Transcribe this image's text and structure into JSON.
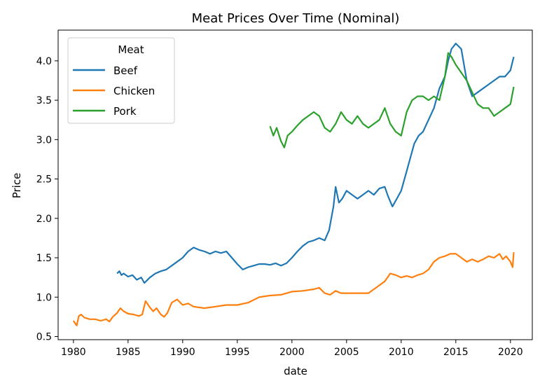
{
  "chart_data": {
    "type": "line",
    "title": "Meat Prices Over Time (Nominal)",
    "xlabel": "date",
    "ylabel": "Price",
    "xlim": [
      1978.6,
      2022.0
    ],
    "ylim": [
      0.46,
      4.39
    ],
    "x_ticks": [
      1980,
      1985,
      1990,
      1995,
      2000,
      2005,
      2010,
      2015,
      2020
    ],
    "y_ticks": [
      0.5,
      1.0,
      1.5,
      2.0,
      2.5,
      3.0,
      3.5,
      4.0
    ],
    "x_tick_labels": [
      "1980",
      "1985",
      "1990",
      "1995",
      "2000",
      "2005",
      "2010",
      "2015",
      "2020"
    ],
    "y_tick_labels": [
      "0.5",
      "1.0",
      "1.5",
      "2.0",
      "2.5",
      "3.0",
      "3.5",
      "4.0"
    ],
    "grid": false,
    "legend": {
      "title": "Meat",
      "placement": "upper-left"
    },
    "series": [
      {
        "name": "Beef",
        "color": "#1f77b4",
        "x": [
          1984.0,
          1984.2,
          1984.4,
          1984.6,
          1985.0,
          1985.4,
          1985.8,
          1986.2,
          1986.5,
          1987.0,
          1987.5,
          1988.0,
          1988.5,
          1989.0,
          1989.5,
          1990.0,
          1990.5,
          1991.0,
          1991.5,
          1992.0,
          1992.5,
          1993.0,
          1993.5,
          1994.0,
          1994.5,
          1995.0,
          1995.5,
          1996.0,
          1996.5,
          1997.0,
          1997.5,
          1998.0,
          1998.5,
          1999.0,
          1999.5,
          2000.0,
          2000.5,
          2001.0,
          2001.5,
          2002.0,
          2002.5,
          2003.0,
          2003.4,
          2003.8,
          2004.0,
          2004.3,
          2004.6,
          2005.0,
          2005.5,
          2006.0,
          2006.5,
          2007.0,
          2007.5,
          2008.0,
          2008.5,
          2008.8,
          2009.2,
          2009.6,
          2010.0,
          2010.4,
          2010.8,
          2011.2,
          2011.6,
          2012.0,
          2012.5,
          2013.0,
          2013.5,
          2014.0,
          2014.3,
          2014.6,
          2015.0,
          2015.5,
          2016.0,
          2016.5,
          2017.0,
          2017.5,
          2018.0,
          2018.5,
          2019.0,
          2019.5,
          2020.0,
          2020.3
        ],
        "values": [
          1.3,
          1.33,
          1.28,
          1.3,
          1.26,
          1.28,
          1.22,
          1.25,
          1.18,
          1.25,
          1.3,
          1.33,
          1.35,
          1.4,
          1.45,
          1.5,
          1.58,
          1.63,
          1.6,
          1.58,
          1.55,
          1.58,
          1.56,
          1.58,
          1.5,
          1.42,
          1.35,
          1.38,
          1.4,
          1.42,
          1.42,
          1.41,
          1.43,
          1.4,
          1.43,
          1.5,
          1.58,
          1.65,
          1.7,
          1.72,
          1.75,
          1.72,
          1.85,
          2.15,
          2.4,
          2.2,
          2.25,
          2.35,
          2.3,
          2.25,
          2.3,
          2.35,
          2.3,
          2.38,
          2.4,
          2.28,
          2.15,
          2.25,
          2.35,
          2.55,
          2.75,
          2.95,
          3.05,
          3.1,
          3.25,
          3.4,
          3.65,
          3.8,
          4.0,
          4.15,
          4.22,
          4.15,
          3.75,
          3.55,
          3.6,
          3.65,
          3.7,
          3.75,
          3.8,
          3.8,
          3.88,
          4.05
        ]
      },
      {
        "name": "Chicken",
        "color": "#ff7f0e",
        "x": [
          1980.0,
          1980.3,
          1980.5,
          1980.7,
          1981.0,
          1981.5,
          1982.0,
          1982.5,
          1983.0,
          1983.3,
          1983.6,
          1984.0,
          1984.3,
          1984.6,
          1985.0,
          1985.5,
          1986.0,
          1986.3,
          1986.6,
          1987.0,
          1987.3,
          1987.6,
          1988.0,
          1988.3,
          1988.6,
          1989.0,
          1989.5,
          1990.0,
          1990.5,
          1991.0,
          1992.0,
          1993.0,
          1994.0,
          1995.0,
          1996.0,
          1997.0,
          1998.0,
          1999.0,
          2000.0,
          2001.0,
          2002.0,
          2002.5,
          2003.0,
          2003.5,
          2004.0,
          2004.5,
          2005.0,
          2006.0,
          2007.0,
          2007.5,
          2008.0,
          2008.5,
          2009.0,
          2009.5,
          2010.0,
          2010.5,
          2011.0,
          2011.5,
          2012.0,
          2012.5,
          2013.0,
          2013.5,
          2014.0,
          2014.5,
          2015.0,
          2015.5,
          2016.0,
          2016.5,
          2017.0,
          2017.5,
          2018.0,
          2018.5,
          2019.0,
          2019.3,
          2019.6,
          2020.0,
          2020.2,
          2020.3
        ],
        "values": [
          0.7,
          0.64,
          0.76,
          0.78,
          0.74,
          0.72,
          0.72,
          0.7,
          0.72,
          0.69,
          0.75,
          0.8,
          0.86,
          0.82,
          0.79,
          0.78,
          0.76,
          0.78,
          0.95,
          0.87,
          0.82,
          0.86,
          0.78,
          0.75,
          0.8,
          0.93,
          0.97,
          0.9,
          0.92,
          0.88,
          0.86,
          0.88,
          0.9,
          0.9,
          0.93,
          1.0,
          1.02,
          1.03,
          1.07,
          1.08,
          1.1,
          1.12,
          1.05,
          1.03,
          1.08,
          1.05,
          1.05,
          1.05,
          1.05,
          1.1,
          1.15,
          1.2,
          1.3,
          1.28,
          1.25,
          1.27,
          1.25,
          1.28,
          1.3,
          1.35,
          1.45,
          1.5,
          1.52,
          1.55,
          1.55,
          1.5,
          1.45,
          1.48,
          1.45,
          1.48,
          1.52,
          1.5,
          1.55,
          1.48,
          1.52,
          1.45,
          1.38,
          1.57
        ]
      },
      {
        "name": "Pork",
        "color": "#2ca02c",
        "x": [
          1998.0,
          1998.3,
          1998.6,
          1999.0,
          1999.3,
          1999.6,
          2000.0,
          2000.5,
          2001.0,
          2001.5,
          2002.0,
          2002.5,
          2003.0,
          2003.5,
          2004.0,
          2004.5,
          2005.0,
          2005.5,
          2006.0,
          2006.5,
          2007.0,
          2007.5,
          2008.0,
          2008.5,
          2009.0,
          2009.5,
          2010.0,
          2010.5,
          2011.0,
          2011.5,
          2012.0,
          2012.5,
          2013.0,
          2013.5,
          2014.0,
          2014.3,
          2014.6,
          2015.0,
          2015.5,
          2016.0,
          2016.5,
          2017.0,
          2017.5,
          2018.0,
          2018.5,
          2019.0,
          2019.5,
          2020.0,
          2020.3
        ],
        "values": [
          3.17,
          3.05,
          3.15,
          2.98,
          2.9,
          3.05,
          3.1,
          3.18,
          3.25,
          3.3,
          3.35,
          3.3,
          3.15,
          3.1,
          3.2,
          3.35,
          3.25,
          3.2,
          3.3,
          3.2,
          3.15,
          3.2,
          3.25,
          3.4,
          3.2,
          3.1,
          3.05,
          3.35,
          3.5,
          3.55,
          3.55,
          3.5,
          3.55,
          3.5,
          3.8,
          4.1,
          4.05,
          3.95,
          3.85,
          3.75,
          3.6,
          3.45,
          3.4,
          3.4,
          3.3,
          3.35,
          3.4,
          3.45,
          3.67
        ]
      }
    ]
  }
}
